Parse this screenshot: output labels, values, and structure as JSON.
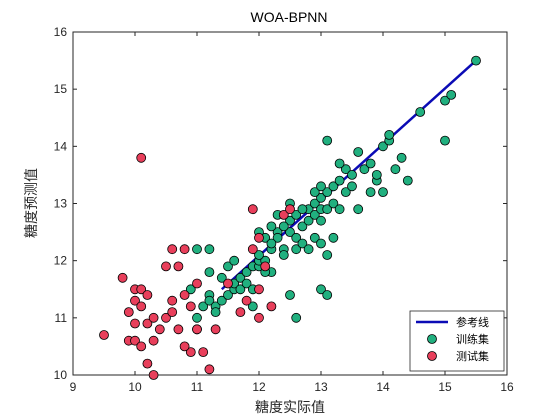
{
  "chart_data": {
    "type": "scatter",
    "title": "WOA-BPNN",
    "xlabel": "糖度实际值",
    "ylabel": "糖度预测值",
    "xlim": [
      9,
      16
    ],
    "ylim": [
      10,
      16
    ],
    "xticks": [
      "9",
      "10",
      "11",
      "12",
      "13",
      "14",
      "15",
      "16"
    ],
    "yticks": [
      "10",
      "11",
      "12",
      "13",
      "14",
      "15",
      "16"
    ],
    "grid": false,
    "legend_position": "bottom-right",
    "colors": {
      "reference": "#0b0bb5",
      "train": "#21b07f",
      "test": "#e83f5b",
      "edge": "#000000"
    },
    "series": [
      {
        "name": "参考线",
        "kind": "line",
        "points": [
          [
            11.4,
            11.5
          ],
          [
            15.5,
            15.5
          ]
        ]
      },
      {
        "name": "训练集",
        "kind": "scatter",
        "points": [
          [
            11.1,
            11.2
          ],
          [
            11.2,
            11.4
          ],
          [
            11.2,
            11.3
          ],
          [
            11.3,
            11.2
          ],
          [
            11.3,
            11.1
          ],
          [
            11.4,
            11.3
          ],
          [
            11.5,
            11.4
          ],
          [
            11.6,
            11.5
          ],
          [
            11.6,
            11.6
          ],
          [
            11.7,
            11.5
          ],
          [
            11.7,
            11.7
          ],
          [
            11.8,
            11.8
          ],
          [
            11.8,
            11.6
          ],
          [
            11.9,
            11.9
          ],
          [
            11.9,
            11.5
          ],
          [
            12.0,
            11.9
          ],
          [
            12.0,
            12.0
          ],
          [
            12.1,
            12.0
          ],
          [
            12.2,
            12.2
          ],
          [
            12.2,
            11.8
          ],
          [
            12.3,
            12.5
          ],
          [
            12.3,
            12.4
          ],
          [
            12.4,
            12.2
          ],
          [
            12.5,
            12.5
          ],
          [
            12.5,
            12.7
          ],
          [
            12.6,
            12.4
          ],
          [
            12.6,
            12.8
          ],
          [
            12.7,
            12.6
          ],
          [
            12.8,
            12.9
          ],
          [
            12.8,
            12.7
          ],
          [
            12.9,
            12.8
          ],
          [
            12.9,
            13.0
          ],
          [
            13.0,
            12.9
          ],
          [
            13.0,
            13.1
          ],
          [
            13.0,
            12.7
          ],
          [
            13.1,
            13.2
          ],
          [
            13.1,
            12.9
          ],
          [
            13.2,
            13.0
          ],
          [
            13.2,
            13.3
          ],
          [
            13.3,
            13.4
          ],
          [
            13.3,
            12.9
          ],
          [
            13.4,
            13.6
          ],
          [
            13.4,
            13.2
          ],
          [
            13.5,
            13.3
          ],
          [
            13.6,
            13.9
          ],
          [
            13.7,
            13.6
          ],
          [
            13.8,
            13.7
          ],
          [
            13.9,
            13.4
          ],
          [
            14.0,
            14.0
          ],
          [
            14.0,
            13.2
          ],
          [
            14.1,
            14.1
          ],
          [
            14.2,
            13.6
          ],
          [
            11.0,
            11.0
          ],
          [
            11.0,
            10.8
          ],
          [
            10.9,
            11.5
          ],
          [
            11.0,
            12.2
          ],
          [
            11.2,
            12.2
          ],
          [
            11.2,
            11.8
          ],
          [
            11.4,
            11.7
          ],
          [
            11.5,
            11.9
          ],
          [
            11.6,
            12.0
          ],
          [
            12.0,
            12.1
          ],
          [
            12.1,
            12.4
          ],
          [
            12.2,
            12.6
          ],
          [
            12.3,
            12.8
          ],
          [
            12.4,
            12.1
          ],
          [
            12.5,
            13.0
          ],
          [
            12.6,
            12.2
          ],
          [
            12.7,
            12.3
          ],
          [
            12.8,
            12.2
          ],
          [
            12.9,
            12.4
          ],
          [
            13.0,
            12.3
          ],
          [
            13.1,
            12.1
          ],
          [
            13.2,
            12.4
          ],
          [
            13.0,
            11.5
          ],
          [
            13.1,
            11.4
          ],
          [
            12.6,
            11.0
          ],
          [
            12.5,
            11.4
          ],
          [
            11.9,
            11.2
          ],
          [
            12.1,
            11.8
          ],
          [
            13.1,
            14.1
          ],
          [
            13.3,
            13.7
          ],
          [
            13.5,
            13.5
          ],
          [
            13.6,
            12.9
          ],
          [
            13.8,
            13.2
          ],
          [
            13.9,
            13.5
          ],
          [
            14.1,
            14.2
          ],
          [
            14.3,
            13.8
          ],
          [
            14.6,
            14.6
          ],
          [
            15.0,
            14.8
          ],
          [
            15.1,
            14.9
          ],
          [
            15.5,
            15.5
          ],
          [
            15.0,
            14.1
          ],
          [
            14.4,
            13.4
          ],
          [
            12.0,
            12.5
          ],
          [
            12.2,
            12.3
          ],
          [
            12.4,
            12.6
          ],
          [
            12.7,
            12.9
          ],
          [
            12.9,
            13.2
          ],
          [
            13.0,
            13.3
          ]
        ]
      },
      {
        "name": "测试集",
        "kind": "scatter",
        "points": [
          [
            9.5,
            10.7
          ],
          [
            9.8,
            11.7
          ],
          [
            9.9,
            11.1
          ],
          [
            9.9,
            10.6
          ],
          [
            10.0,
            11.5
          ],
          [
            10.0,
            11.3
          ],
          [
            10.0,
            10.9
          ],
          [
            10.0,
            10.6
          ],
          [
            10.1,
            11.5
          ],
          [
            10.1,
            11.2
          ],
          [
            10.1,
            10.5
          ],
          [
            10.1,
            13.8
          ],
          [
            10.2,
            11.4
          ],
          [
            10.2,
            10.9
          ],
          [
            10.2,
            10.2
          ],
          [
            10.3,
            11.0
          ],
          [
            10.3,
            10.6
          ],
          [
            10.3,
            10.0
          ],
          [
            10.4,
            10.8
          ],
          [
            10.5,
            11.0
          ],
          [
            10.6,
            11.3
          ],
          [
            10.7,
            10.8
          ],
          [
            10.7,
            11.9
          ],
          [
            10.8,
            11.4
          ],
          [
            10.9,
            10.4
          ],
          [
            10.8,
            10.5
          ],
          [
            10.9,
            11.2
          ],
          [
            10.8,
            12.2
          ],
          [
            11.0,
            10.8
          ],
          [
            11.1,
            10.4
          ],
          [
            11.2,
            10.1
          ],
          [
            11.3,
            10.8
          ],
          [
            11.5,
            11.6
          ],
          [
            11.7,
            11.1
          ],
          [
            11.8,
            11.3
          ],
          [
            11.9,
            12.2
          ],
          [
            12.0,
            12.4
          ],
          [
            12.0,
            11.0
          ],
          [
            11.9,
            12.9
          ],
          [
            12.0,
            11.5
          ],
          [
            12.1,
            11.9
          ],
          [
            12.2,
            11.2
          ],
          [
            10.6,
            12.2
          ],
          [
            10.5,
            11.9
          ],
          [
            10.6,
            11.1
          ],
          [
            11.0,
            11.6
          ],
          [
            12.4,
            12.8
          ],
          [
            12.5,
            12.9
          ]
        ]
      }
    ]
  }
}
